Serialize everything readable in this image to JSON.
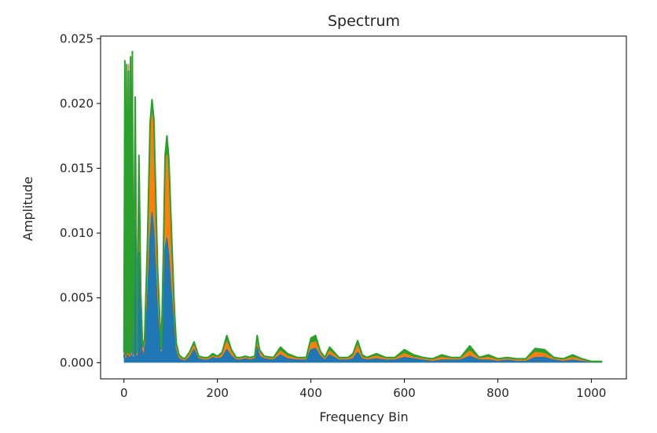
{
  "chart_data": {
    "type": "line",
    "title": "Spectrum",
    "xlabel": "Frequency Bin",
    "ylabel": "Amplitude",
    "xlim": [
      -50,
      1075
    ],
    "ylim": [
      -0.00125,
      0.0252
    ],
    "xticks": [
      0,
      200,
      400,
      600,
      800,
      1000
    ],
    "yticks": [
      0.0,
      0.005,
      0.01,
      0.015,
      0.02,
      0.025
    ],
    "ytick_labels": [
      "0.000",
      "0.005",
      "0.010",
      "0.015",
      "0.020",
      "0.025"
    ],
    "grid": false,
    "legend": "none",
    "colors": [
      "#1f77b4",
      "#ff7f0e",
      "#2ca02c"
    ],
    "series": [
      {
        "color": "#1f77b4",
        "x": [
          0,
          2,
          4,
          6,
          8,
          10,
          12,
          14,
          16,
          18,
          20,
          24,
          28,
          32,
          36,
          40,
          44,
          50,
          56,
          60,
          64,
          68,
          72,
          76,
          80,
          84,
          88,
          92,
          96,
          100,
          104,
          108,
          112,
          118,
          124,
          130,
          140,
          150,
          160,
          170,
          180,
          190,
          200,
          210,
          220,
          230,
          240,
          250,
          260,
          270,
          280,
          285,
          290,
          300,
          320,
          335,
          350,
          370,
          390,
          400,
          410,
          420,
          430,
          440,
          450,
          460,
          470,
          480,
          490,
          500,
          510,
          520,
          540,
          560,
          580,
          600,
          620,
          640,
          660,
          680,
          700,
          720,
          740,
          760,
          780,
          800,
          820,
          840,
          860,
          880,
          900,
          920,
          940,
          960,
          980,
          1000,
          1023
        ],
        "values": [
          0.0004,
          0.0132,
          0.0002,
          0.0128,
          0.0003,
          0.013,
          0.0002,
          0.0126,
          0.0004,
          0.0123,
          0.0003,
          0.011,
          0.0004,
          0.0085,
          0.003,
          0.0006,
          0.0008,
          0.0045,
          0.0096,
          0.0116,
          0.01,
          0.0068,
          0.0038,
          0.002,
          0.0006,
          0.004,
          0.0088,
          0.0096,
          0.0082,
          0.006,
          0.004,
          0.002,
          0.0008,
          0.0003,
          0.0002,
          0.0001,
          0.0004,
          0.001,
          0.0003,
          0.0002,
          0.0002,
          0.0004,
          0.0003,
          0.0004,
          0.001,
          0.0005,
          0.0002,
          0.0002,
          0.0003,
          0.0002,
          0.0003,
          0.0012,
          0.0005,
          0.0003,
          0.0002,
          0.0006,
          0.0003,
          0.0002,
          0.0002,
          0.001,
          0.0011,
          0.0005,
          0.0002,
          0.0006,
          0.0004,
          0.0002,
          0.0002,
          0.0002,
          0.0003,
          0.0008,
          0.0003,
          0.0002,
          0.0003,
          0.0002,
          0.0002,
          0.0004,
          0.0003,
          0.0002,
          0.0001,
          0.0002,
          0.0002,
          0.0002,
          0.0005,
          0.0002,
          0.0002,
          0.0001,
          0.0002,
          0.0001,
          0.0001,
          0.0004,
          0.0004,
          0.0002,
          0.0001,
          0.0002,
          0.0001,
          0.0001,
          0.0001
        ]
      },
      {
        "color": "#ff7f0e",
        "x": [
          0,
          2,
          4,
          6,
          8,
          10,
          12,
          14,
          16,
          18,
          20,
          24,
          28,
          32,
          36,
          40,
          44,
          50,
          56,
          60,
          64,
          68,
          72,
          76,
          80,
          84,
          88,
          92,
          96,
          100,
          104,
          108,
          112,
          118,
          124,
          130,
          140,
          150,
          160,
          170,
          180,
          190,
          200,
          210,
          220,
          230,
          240,
          250,
          260,
          270,
          280,
          285,
          290,
          300,
          320,
          335,
          350,
          370,
          390,
          400,
          410,
          420,
          430,
          440,
          450,
          460,
          470,
          480,
          490,
          500,
          510,
          520,
          540,
          560,
          580,
          600,
          620,
          640,
          660,
          680,
          700,
          720,
          740,
          760,
          780,
          800,
          820,
          840,
          860,
          880,
          900,
          920,
          940,
          960,
          980,
          1000,
          1023
        ],
        "values": [
          0.0006,
          0.0224,
          0.0004,
          0.0228,
          0.0006,
          0.023,
          0.0005,
          0.0226,
          0.0006,
          0.022,
          0.0005,
          0.0196,
          0.0006,
          0.015,
          0.005,
          0.001,
          0.0015,
          0.008,
          0.0168,
          0.0192,
          0.0172,
          0.0118,
          0.0066,
          0.0035,
          0.0009,
          0.007,
          0.0146,
          0.016,
          0.014,
          0.0102,
          0.0068,
          0.0034,
          0.0012,
          0.0004,
          0.0003,
          0.0002,
          0.0006,
          0.0013,
          0.0004,
          0.0003,
          0.0003,
          0.0005,
          0.0004,
          0.0006,
          0.0016,
          0.0008,
          0.0003,
          0.0003,
          0.0004,
          0.0003,
          0.0004,
          0.0017,
          0.0008,
          0.0004,
          0.0003,
          0.0009,
          0.0005,
          0.0003,
          0.0003,
          0.0015,
          0.0016,
          0.0007,
          0.0003,
          0.0009,
          0.0006,
          0.0003,
          0.0003,
          0.0003,
          0.0005,
          0.0013,
          0.0004,
          0.0003,
          0.0005,
          0.0003,
          0.0003,
          0.0007,
          0.0004,
          0.0003,
          0.0002,
          0.0004,
          0.0003,
          0.0003,
          0.0009,
          0.0003,
          0.0004,
          0.0002,
          0.0003,
          0.0002,
          0.0002,
          0.0008,
          0.0007,
          0.0003,
          0.0002,
          0.0004,
          0.0002,
          0.0001,
          0.0001
        ]
      },
      {
        "color": "#2ca02c",
        "x": [
          0,
          2,
          4,
          6,
          8,
          10,
          12,
          14,
          16,
          18,
          20,
          24,
          28,
          32,
          36,
          40,
          44,
          50,
          56,
          60,
          64,
          68,
          72,
          76,
          80,
          84,
          88,
          92,
          96,
          100,
          104,
          108,
          112,
          118,
          124,
          130,
          140,
          150,
          160,
          170,
          180,
          190,
          200,
          210,
          220,
          230,
          240,
          250,
          260,
          270,
          280,
          285,
          290,
          300,
          320,
          335,
          350,
          370,
          390,
          400,
          410,
          420,
          430,
          440,
          450,
          460,
          470,
          480,
          490,
          500,
          510,
          520,
          540,
          560,
          580,
          600,
          620,
          640,
          660,
          680,
          700,
          720,
          740,
          760,
          780,
          800,
          820,
          840,
          860,
          880,
          900,
          920,
          940,
          960,
          980,
          1000,
          1023
        ],
        "values": [
          0.0008,
          0.0233,
          0.0006,
          0.023,
          0.0008,
          0.0225,
          0.0007,
          0.0236,
          0.0008,
          0.024,
          0.0007,
          0.0205,
          0.0008,
          0.016,
          0.0055,
          0.0012,
          0.0018,
          0.009,
          0.0185,
          0.0203,
          0.0188,
          0.013,
          0.0074,
          0.004,
          0.0011,
          0.008,
          0.016,
          0.0175,
          0.0158,
          0.0118,
          0.0078,
          0.004,
          0.0015,
          0.0006,
          0.0004,
          0.0003,
          0.0008,
          0.0016,
          0.0005,
          0.0004,
          0.0004,
          0.0007,
          0.0005,
          0.0008,
          0.0021,
          0.001,
          0.0004,
          0.0004,
          0.0005,
          0.0004,
          0.0005,
          0.0021,
          0.001,
          0.0005,
          0.0004,
          0.0012,
          0.0007,
          0.0004,
          0.0004,
          0.0019,
          0.0021,
          0.0009,
          0.0004,
          0.0012,
          0.0008,
          0.0004,
          0.0004,
          0.0004,
          0.0007,
          0.0017,
          0.0006,
          0.0004,
          0.0007,
          0.0004,
          0.0004,
          0.001,
          0.0006,
          0.0004,
          0.0003,
          0.0006,
          0.0004,
          0.0004,
          0.0013,
          0.0004,
          0.0006,
          0.0003,
          0.0004,
          0.0003,
          0.0003,
          0.0011,
          0.001,
          0.0004,
          0.0003,
          0.0006,
          0.0003,
          0.0001,
          0.0001
        ]
      }
    ]
  }
}
